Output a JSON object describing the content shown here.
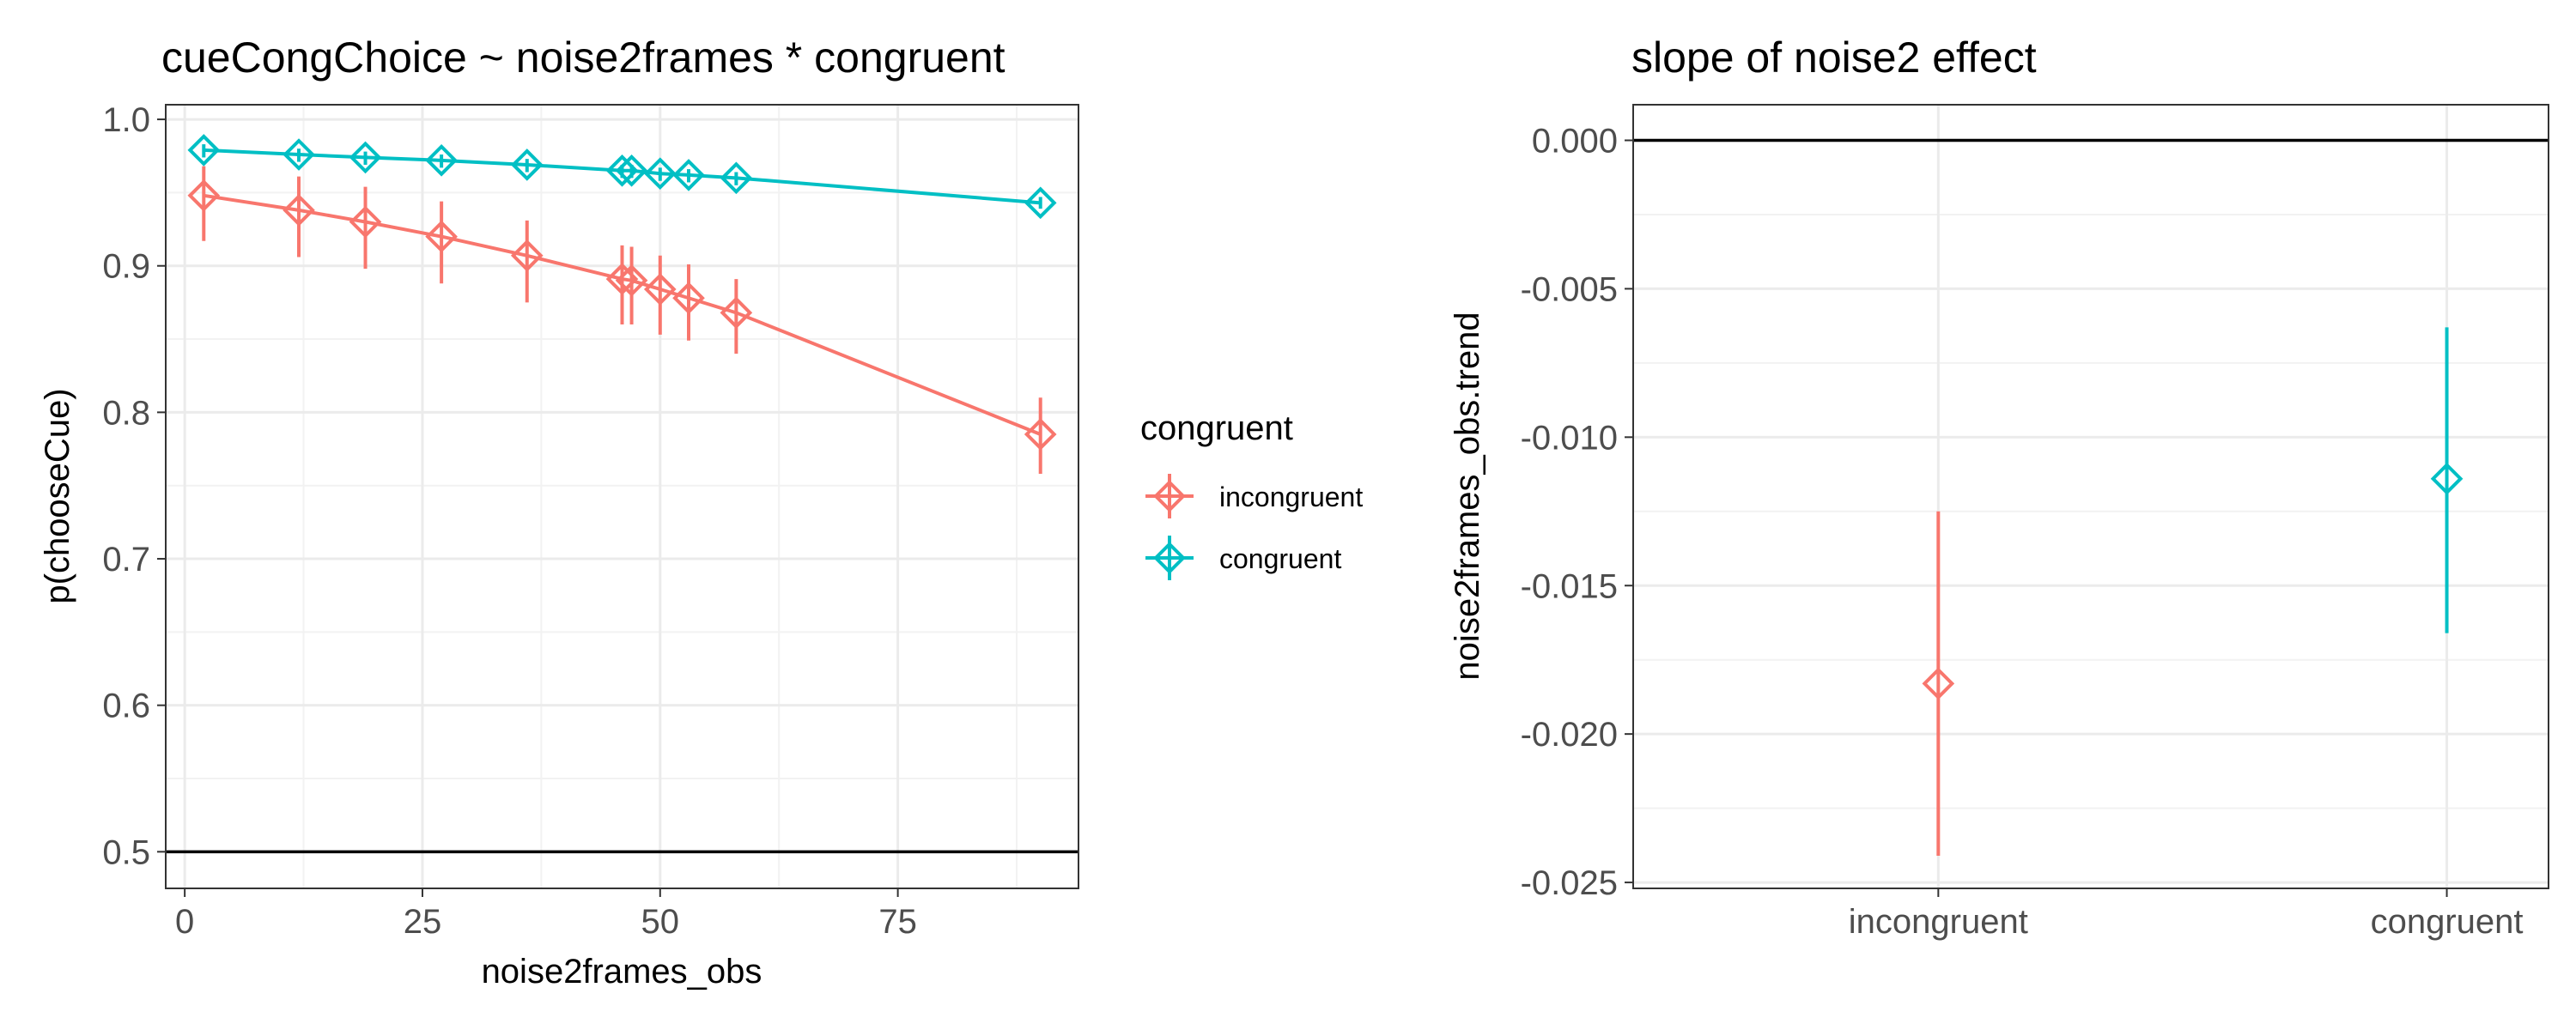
{
  "chart_data": [
    {
      "type": "line",
      "title": "cueCongChoice ~ noise2frames * congruent",
      "xlabel": "noise2frames_obs",
      "ylabel": "p(chooseCue)",
      "xlim": [
        -2,
        94
      ],
      "ylim": [
        0.475,
        1.01
      ],
      "x_ticks": [
        0,
        25,
        50,
        75
      ],
      "x_tick_labels": [
        "0",
        "25",
        "50",
        "75"
      ],
      "y_ticks": [
        0.5,
        0.6,
        0.7,
        0.8,
        0.9,
        1.0
      ],
      "y_tick_labels": [
        "0.5",
        "0.6",
        "0.7",
        "0.8",
        "0.9",
        "1.0"
      ],
      "reference_line": 0.5,
      "grid": true,
      "legend": {
        "title": "congruent",
        "position": "right",
        "entries": [
          "incongruent",
          "congruent"
        ]
      },
      "series": [
        {
          "name": "incongruent",
          "color": "#F8766D",
          "points": [
            {
              "x": 2,
              "y": 0.948,
              "lo": 0.917,
              "hi": 0.968
            },
            {
              "x": 12,
              "y": 0.938,
              "lo": 0.906,
              "hi": 0.961
            },
            {
              "x": 19,
              "y": 0.93,
              "lo": 0.898,
              "hi": 0.954
            },
            {
              "x": 27,
              "y": 0.92,
              "lo": 0.888,
              "hi": 0.944
            },
            {
              "x": 36,
              "y": 0.907,
              "lo": 0.875,
              "hi": 0.931
            },
            {
              "x": 46,
              "y": 0.891,
              "lo": 0.86,
              "hi": 0.914
            },
            {
              "x": 47,
              "y": 0.89,
              "lo": 0.86,
              "hi": 0.913
            },
            {
              "x": 50,
              "y": 0.884,
              "lo": 0.853,
              "hi": 0.907
            },
            {
              "x": 53,
              "y": 0.878,
              "lo": 0.849,
              "hi": 0.901
            },
            {
              "x": 58,
              "y": 0.868,
              "lo": 0.84,
              "hi": 0.891
            },
            {
              "x": 90,
              "y": 0.785,
              "lo": 0.758,
              "hi": 0.81
            }
          ]
        },
        {
          "name": "congruent",
          "color": "#00BFC4",
          "points": [
            {
              "x": 2,
              "y": 0.979,
              "lo": 0.974,
              "hi": 0.983
            },
            {
              "x": 12,
              "y": 0.976,
              "lo": 0.971,
              "hi": 0.98
            },
            {
              "x": 19,
              "y": 0.974,
              "lo": 0.969,
              "hi": 0.978
            },
            {
              "x": 27,
              "y": 0.972,
              "lo": 0.967,
              "hi": 0.976
            },
            {
              "x": 36,
              "y": 0.969,
              "lo": 0.964,
              "hi": 0.973
            },
            {
              "x": 46,
              "y": 0.965,
              "lo": 0.96,
              "hi": 0.969
            },
            {
              "x": 47,
              "y": 0.965,
              "lo": 0.96,
              "hi": 0.969
            },
            {
              "x": 50,
              "y": 0.963,
              "lo": 0.958,
              "hi": 0.967
            },
            {
              "x": 53,
              "y": 0.962,
              "lo": 0.957,
              "hi": 0.966
            },
            {
              "x": 58,
              "y": 0.96,
              "lo": 0.955,
              "hi": 0.964
            },
            {
              "x": 90,
              "y": 0.943,
              "lo": 0.939,
              "hi": 0.947
            }
          ]
        }
      ]
    },
    {
      "type": "scatter",
      "title": "slope of noise2 effect",
      "xlabel": "",
      "ylabel": "noise2frames_obs.trend",
      "categories": [
        "incongruent",
        "congruent"
      ],
      "ylim": [
        -0.0252,
        0.0012
      ],
      "y_ticks": [
        0.0,
        -0.005,
        -0.01,
        -0.015,
        -0.02,
        -0.025
      ],
      "y_tick_labels": [
        "0.000",
        "-0.005",
        "-0.010",
        "-0.015",
        "-0.020",
        "-0.025"
      ],
      "reference_line": 0.0,
      "grid": true,
      "points": [
        {
          "category": "incongruent",
          "y": -0.0183,
          "lo": -0.0241,
          "hi": -0.0125,
          "color": "#F8766D"
        },
        {
          "category": "congruent",
          "y": -0.0114,
          "lo": -0.0166,
          "hi": -0.0063,
          "color": "#00BFC4"
        }
      ]
    }
  ]
}
